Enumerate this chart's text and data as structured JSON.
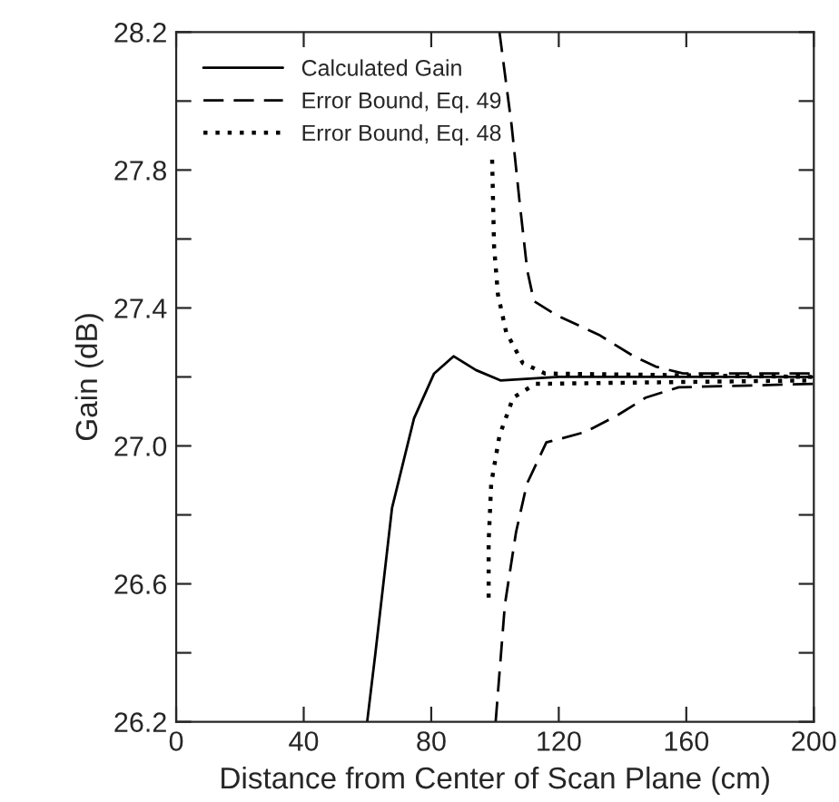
{
  "chart_data": {
    "type": "line",
    "xlabel": "Distance from Center of Scan Plane (cm)",
    "ylabel": "Gain (dB)",
    "xlim": [
      0,
      200
    ],
    "ylim": [
      26.2,
      28.2
    ],
    "xticks": [
      0,
      40,
      80,
      120,
      160,
      200
    ],
    "yticks": [
      26.2,
      {
        "value": 26.4,
        "label": null
      },
      26.6,
      {
        "value": 26.8,
        "label": null
      },
      {
        "value": 27.0,
        "label": "27.0"
      },
      {
        "value": 27.2,
        "label": null
      },
      27.4,
      {
        "value": 27.6,
        "label": null
      },
      27.8,
      {
        "value": 28.0,
        "label": null
      },
      28.2
    ],
    "grid": false,
    "legend": "top left",
    "series": [
      {
        "name": "Calculated Gain",
        "color": "#000000",
        "line_style": "solid",
        "x": [
          59.9,
          62.5,
          67.7,
          74.6,
          80.9,
          87,
          94,
          101.7,
          120,
          160,
          200
        ],
        "values": [
          26.2,
          26.4,
          26.82,
          27.08,
          27.21,
          27.26,
          27.22,
          27.19,
          27.2,
          27.2,
          27.2
        ]
      },
      {
        "name": "Error Bound, Eq. 49",
        "color": "#000000",
        "line_style": "dashed",
        "x": [
          101.4,
          105.2,
          107.8,
          110.1,
          112.2,
          119.1,
          133,
          143.5,
          150.4,
          159,
          200
        ],
        "values": [
          28.2,
          27.93,
          27.7,
          27.51,
          27.42,
          27.38,
          27.32,
          27.26,
          27.23,
          27.21,
          27.21
        ]
      },
      {
        "color": "#000000",
        "line_style": "dashed",
        "x": [
          100.2,
          103.1,
          106.6,
          110,
          116.1,
          128.2,
          138.6,
          147.3,
          157.6,
          200
        ],
        "values": [
          26.2,
          26.54,
          26.75,
          26.89,
          27.01,
          27.04,
          27.09,
          27.14,
          27.17,
          27.18
        ]
      },
      {
        "name": "Error Bound, Eq. 48",
        "color": "#000000",
        "line_style": "dotted",
        "x": [
          99.1,
          99.7,
          100.9,
          103.5,
          108.7,
          115.7,
          200
        ],
        "values": [
          27.83,
          27.58,
          27.44,
          27.33,
          27.24,
          27.21,
          27.2
        ]
      },
      {
        "color": "#000000",
        "line_style": "dotted",
        "x": [
          98,
          98,
          98.8,
          101.4,
          105.7,
          112.7,
          200
        ],
        "values": [
          26.56,
          26.72,
          26.89,
          27.03,
          27.14,
          27.18,
          27.19
        ]
      }
    ]
  }
}
